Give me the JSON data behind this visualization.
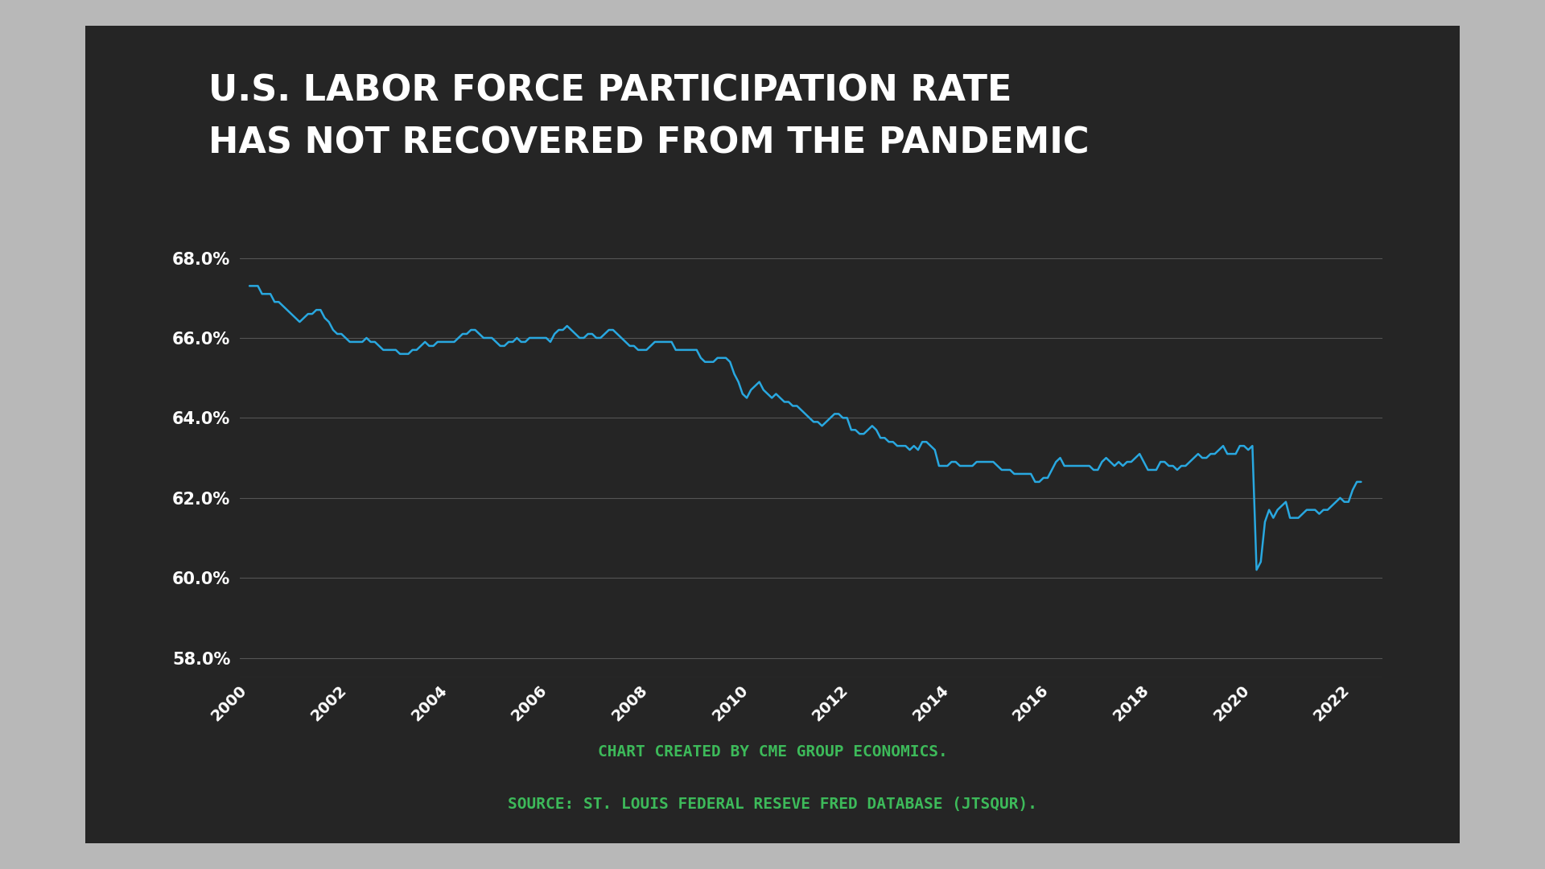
{
  "title_line1": "U.S. LABOR FORCE PARTICIPATION RATE",
  "title_line2": "HAS NOT RECOVERED FROM THE PANDEMIC",
  "credit": "CHART CREATED BY CME GROUP ECONOMICS.",
  "source": "SOURCE: ST. LOUIS FEDERAL RESEVE FRED DATABASE (JTSQUR).",
  "line_color": "#29a8e0",
  "background_color": "#252525",
  "outer_background": "#b8b8b8",
  "title_color": "#ffffff",
  "axis_label_color": "#ffffff",
  "grid_color": "#555555",
  "credit_color": "#3dba5a",
  "ylim": [
    57.5,
    68.8
  ],
  "yticks": [
    58.0,
    60.0,
    62.0,
    64.0,
    66.0,
    68.0
  ],
  "xticks": [
    2000,
    2002,
    2004,
    2006,
    2008,
    2010,
    2012,
    2014,
    2016,
    2018,
    2020,
    2022
  ],
  "data": {
    "years": [
      2000.0,
      2000.083,
      2000.167,
      2000.25,
      2000.333,
      2000.417,
      2000.5,
      2000.583,
      2000.667,
      2000.75,
      2000.833,
      2000.917,
      2001.0,
      2001.083,
      2001.167,
      2001.25,
      2001.333,
      2001.417,
      2001.5,
      2001.583,
      2001.667,
      2001.75,
      2001.833,
      2001.917,
      2002.0,
      2002.083,
      2002.167,
      2002.25,
      2002.333,
      2002.417,
      2002.5,
      2002.583,
      2002.667,
      2002.75,
      2002.833,
      2002.917,
      2003.0,
      2003.083,
      2003.167,
      2003.25,
      2003.333,
      2003.417,
      2003.5,
      2003.583,
      2003.667,
      2003.75,
      2003.833,
      2003.917,
      2004.0,
      2004.083,
      2004.167,
      2004.25,
      2004.333,
      2004.417,
      2004.5,
      2004.583,
      2004.667,
      2004.75,
      2004.833,
      2004.917,
      2005.0,
      2005.083,
      2005.167,
      2005.25,
      2005.333,
      2005.417,
      2005.5,
      2005.583,
      2005.667,
      2005.75,
      2005.833,
      2005.917,
      2006.0,
      2006.083,
      2006.167,
      2006.25,
      2006.333,
      2006.417,
      2006.5,
      2006.583,
      2006.667,
      2006.75,
      2006.833,
      2006.917,
      2007.0,
      2007.083,
      2007.167,
      2007.25,
      2007.333,
      2007.417,
      2007.5,
      2007.583,
      2007.667,
      2007.75,
      2007.833,
      2007.917,
      2008.0,
      2008.083,
      2008.167,
      2008.25,
      2008.333,
      2008.417,
      2008.5,
      2008.583,
      2008.667,
      2008.75,
      2008.833,
      2008.917,
      2009.0,
      2009.083,
      2009.167,
      2009.25,
      2009.333,
      2009.417,
      2009.5,
      2009.583,
      2009.667,
      2009.75,
      2009.833,
      2009.917,
      2010.0,
      2010.083,
      2010.167,
      2010.25,
      2010.333,
      2010.417,
      2010.5,
      2010.583,
      2010.667,
      2010.75,
      2010.833,
      2010.917,
      2011.0,
      2011.083,
      2011.167,
      2011.25,
      2011.333,
      2011.417,
      2011.5,
      2011.583,
      2011.667,
      2011.75,
      2011.833,
      2011.917,
      2012.0,
      2012.083,
      2012.167,
      2012.25,
      2012.333,
      2012.417,
      2012.5,
      2012.583,
      2012.667,
      2012.75,
      2012.833,
      2012.917,
      2013.0,
      2013.083,
      2013.167,
      2013.25,
      2013.333,
      2013.417,
      2013.5,
      2013.583,
      2013.667,
      2013.75,
      2013.833,
      2013.917,
      2014.0,
      2014.083,
      2014.167,
      2014.25,
      2014.333,
      2014.417,
      2014.5,
      2014.583,
      2014.667,
      2014.75,
      2014.833,
      2014.917,
      2015.0,
      2015.083,
      2015.167,
      2015.25,
      2015.333,
      2015.417,
      2015.5,
      2015.583,
      2015.667,
      2015.75,
      2015.833,
      2015.917,
      2016.0,
      2016.083,
      2016.167,
      2016.25,
      2016.333,
      2016.417,
      2016.5,
      2016.583,
      2016.667,
      2016.75,
      2016.833,
      2016.917,
      2017.0,
      2017.083,
      2017.167,
      2017.25,
      2017.333,
      2017.417,
      2017.5,
      2017.583,
      2017.667,
      2017.75,
      2017.833,
      2017.917,
      2018.0,
      2018.083,
      2018.167,
      2018.25,
      2018.333,
      2018.417,
      2018.5,
      2018.583,
      2018.667,
      2018.75,
      2018.833,
      2018.917,
      2019.0,
      2019.083,
      2019.167,
      2019.25,
      2019.333,
      2019.417,
      2019.5,
      2019.583,
      2019.667,
      2019.75,
      2019.833,
      2019.917,
      2020.0,
      2020.083,
      2020.167,
      2020.25,
      2020.333,
      2020.417,
      2020.5,
      2020.583,
      2020.667,
      2020.75,
      2020.833,
      2020.917,
      2021.0,
      2021.083,
      2021.167,
      2021.25,
      2021.333,
      2021.417,
      2021.5,
      2021.583,
      2021.667,
      2021.75,
      2021.833,
      2021.917,
      2022.0,
      2022.083,
      2022.167
    ],
    "values": [
      67.3,
      67.3,
      67.3,
      67.1,
      67.1,
      67.1,
      66.9,
      66.9,
      66.8,
      66.7,
      66.6,
      66.5,
      66.4,
      66.5,
      66.6,
      66.6,
      66.7,
      66.7,
      66.5,
      66.4,
      66.2,
      66.1,
      66.1,
      66.0,
      65.9,
      65.9,
      65.9,
      65.9,
      66.0,
      65.9,
      65.9,
      65.8,
      65.7,
      65.7,
      65.7,
      65.7,
      65.6,
      65.6,
      65.6,
      65.7,
      65.7,
      65.8,
      65.9,
      65.8,
      65.8,
      65.9,
      65.9,
      65.9,
      65.9,
      65.9,
      66.0,
      66.1,
      66.1,
      66.2,
      66.2,
      66.1,
      66.0,
      66.0,
      66.0,
      65.9,
      65.8,
      65.8,
      65.9,
      65.9,
      66.0,
      65.9,
      65.9,
      66.0,
      66.0,
      66.0,
      66.0,
      66.0,
      65.9,
      66.1,
      66.2,
      66.2,
      66.3,
      66.2,
      66.1,
      66.0,
      66.0,
      66.1,
      66.1,
      66.0,
      66.0,
      66.1,
      66.2,
      66.2,
      66.1,
      66.0,
      65.9,
      65.8,
      65.8,
      65.7,
      65.7,
      65.7,
      65.8,
      65.9,
      65.9,
      65.9,
      65.9,
      65.9,
      65.7,
      65.7,
      65.7,
      65.7,
      65.7,
      65.7,
      65.5,
      65.4,
      65.4,
      65.4,
      65.5,
      65.5,
      65.5,
      65.4,
      65.1,
      64.9,
      64.6,
      64.5,
      64.7,
      64.8,
      64.9,
      64.7,
      64.6,
      64.5,
      64.6,
      64.5,
      64.4,
      64.4,
      64.3,
      64.3,
      64.2,
      64.1,
      64.0,
      63.9,
      63.9,
      63.8,
      63.9,
      64.0,
      64.1,
      64.1,
      64.0,
      64.0,
      63.7,
      63.7,
      63.6,
      63.6,
      63.7,
      63.8,
      63.7,
      63.5,
      63.5,
      63.4,
      63.4,
      63.3,
      63.3,
      63.3,
      63.2,
      63.3,
      63.2,
      63.4,
      63.4,
      63.3,
      63.2,
      62.8,
      62.8,
      62.8,
      62.9,
      62.9,
      62.8,
      62.8,
      62.8,
      62.8,
      62.9,
      62.9,
      62.9,
      62.9,
      62.9,
      62.8,
      62.7,
      62.7,
      62.7,
      62.6,
      62.6,
      62.6,
      62.6,
      62.6,
      62.4,
      62.4,
      62.5,
      62.5,
      62.7,
      62.9,
      63.0,
      62.8,
      62.8,
      62.8,
      62.8,
      62.8,
      62.8,
      62.8,
      62.7,
      62.7,
      62.9,
      63.0,
      62.9,
      62.8,
      62.9,
      62.8,
      62.9,
      62.9,
      63.0,
      63.1,
      62.9,
      62.7,
      62.7,
      62.7,
      62.9,
      62.9,
      62.8,
      62.8,
      62.7,
      62.8,
      62.8,
      62.9,
      63.0,
      63.1,
      63.0,
      63.0,
      63.1,
      63.1,
      63.2,
      63.3,
      63.1,
      63.1,
      63.1,
      63.3,
      63.3,
      63.2,
      63.3,
      60.2,
      60.4,
      61.4,
      61.7,
      61.5,
      61.7,
      61.8,
      61.9,
      61.5,
      61.5,
      61.5,
      61.6,
      61.7,
      61.7,
      61.7,
      61.6,
      61.7,
      61.7,
      61.8,
      61.9,
      62.0,
      61.9,
      61.9,
      62.2,
      62.4,
      62.4
    ]
  }
}
